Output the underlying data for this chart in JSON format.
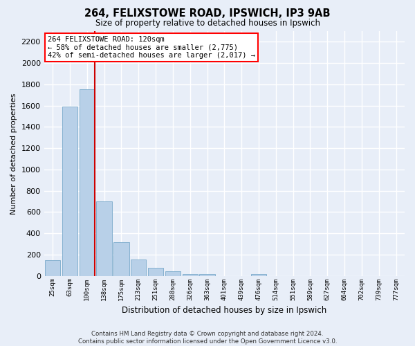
{
  "title": "264, FELIXSTOWE ROAD, IPSWICH, IP3 9AB",
  "subtitle": "Size of property relative to detached houses in Ipswich",
  "xlabel": "Distribution of detached houses by size in Ipswich",
  "ylabel": "Number of detached properties",
  "footer_line1": "Contains HM Land Registry data © Crown copyright and database right 2024.",
  "footer_line2": "Contains public sector information licensed under the Open Government Licence v3.0.",
  "annotation_line1": "264 FELIXSTOWE ROAD: 120sqm",
  "annotation_line2": "← 58% of detached houses are smaller (2,775)",
  "annotation_line3": "42% of semi-detached houses are larger (2,017) →",
  "bar_color": "#b8d0e8",
  "bar_edge_color": "#7aaacb",
  "vline_color": "#cc0000",
  "background_color": "#e8eef8",
  "grid_color": "#ffffff",
  "categories": [
    "25sqm",
    "63sqm",
    "100sqm",
    "138sqm",
    "175sqm",
    "213sqm",
    "251sqm",
    "288sqm",
    "326sqm",
    "363sqm",
    "401sqm",
    "439sqm",
    "476sqm",
    "514sqm",
    "551sqm",
    "589sqm",
    "627sqm",
    "664sqm",
    "702sqm",
    "739sqm",
    "777sqm"
  ],
  "values": [
    150,
    1590,
    1755,
    700,
    315,
    155,
    75,
    40,
    20,
    15,
    0,
    0,
    15,
    0,
    0,
    0,
    0,
    0,
    0,
    0,
    0
  ],
  "ylim": [
    0,
    2300
  ],
  "yticks": [
    0,
    200,
    400,
    600,
    800,
    1000,
    1200,
    1400,
    1600,
    1800,
    2000,
    2200
  ],
  "vline_index": 2
}
